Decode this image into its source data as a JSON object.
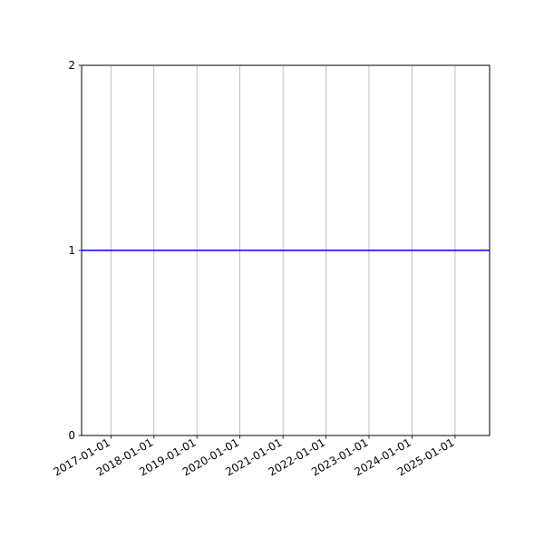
{
  "chart_data": {
    "type": "line",
    "title": "",
    "xlabel": "",
    "ylabel": "",
    "xlim": [
      "2016-04-27",
      "2025-10-21"
    ],
    "ylim": [
      0,
      2
    ],
    "x_ticks": [
      "2017-01-01",
      "2018-01-01",
      "2019-01-01",
      "2020-01-01",
      "2021-01-01",
      "2022-01-01",
      "2023-01-01",
      "2024-01-01",
      "2025-01-01"
    ],
    "y_ticks": [
      "0",
      "1",
      "2"
    ],
    "grid": "x-axis vertical lines",
    "series": [
      {
        "color": "#0000ff",
        "x": [
          "2016-04-27",
          "2025-10-21"
        ],
        "y": [
          1,
          1
        ]
      }
    ],
    "grid_color": "#b0b0b0"
  }
}
